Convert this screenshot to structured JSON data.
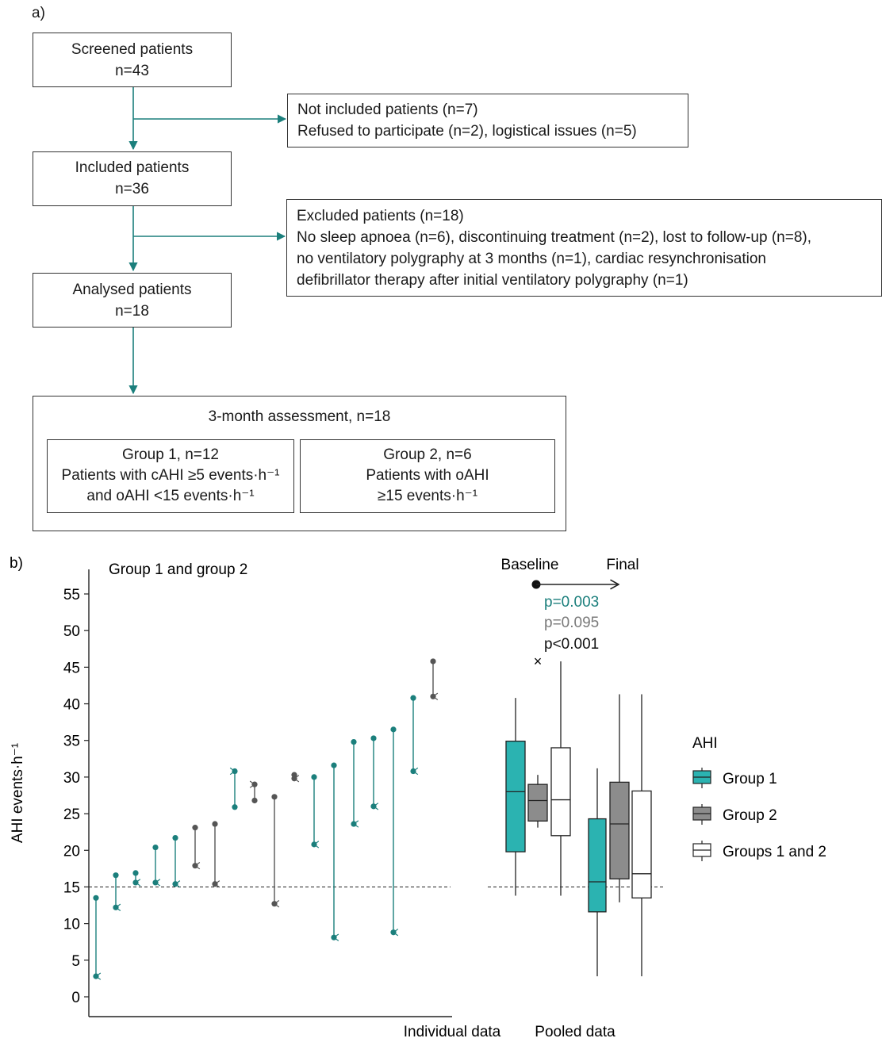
{
  "panel_a": {
    "label": "a)",
    "screened": {
      "title": "Screened patients",
      "n": "n=43"
    },
    "not_included": {
      "line1": "Not included patients (n=7)",
      "line2": "Refused to participate (n=2), logistical issues (n=5)"
    },
    "included": {
      "title": "Included patients",
      "n": "n=36"
    },
    "excluded": {
      "line1": "Excluded patients (n=18)",
      "line2": "No sleep apnoea (n=6), discontinuing treatment (n=2), lost to follow-up (n=8),",
      "line3": "no ventilatory polygraphy at 3 months (n=1), cardiac resynchronisation",
      "line4": "defibrillator therapy after initial ventilatory polygraphy (n=1)"
    },
    "analysed": {
      "title": "Analysed patients",
      "n": "n=18"
    },
    "assessment": {
      "title": "3-month assessment, n=18",
      "group1": {
        "line1": "Group 1, n=12",
        "line2": "Patients with cAHI ≥5 events·h⁻¹",
        "line3": "and oAHI <15 events·h⁻¹"
      },
      "group2": {
        "line1": "Group 2, n=6",
        "line2": "Patients with oAHI",
        "line3": "≥15 events·h⁻¹"
      }
    }
  },
  "panel_b": {
    "label": "b)",
    "individual_subtitle": "Group 1 and group 2",
    "baseline_label": "Baseline",
    "final_label": "Final",
    "p_values": [
      "p=0.003",
      "p=0.095",
      "p<0.001"
    ],
    "outlier_marker": "×",
    "xlabel_individual": "Individual data",
    "xlabel_pooled": "Pooled data",
    "legend_title": "AHI",
    "legend": [
      "Group 1",
      "Group 2",
      "Groups 1 and 2"
    ]
  },
  "colors": {
    "group1": "#2bb3b1",
    "group1_dark": "#1b7f7c",
    "group2": "#8c8c8c",
    "group2_dark": "#555555",
    "all": "#ffffff"
  },
  "chart_data": {
    "type": "scatter",
    "ylabel": "AHI events·h⁻¹",
    "ylim": [
      0,
      55
    ],
    "yticks": [
      0,
      5,
      10,
      15,
      20,
      25,
      30,
      35,
      40,
      45,
      50,
      55
    ],
    "reference_line": 15,
    "individual": [
      {
        "group": 1,
        "baseline": 13.5,
        "final": 2.8
      },
      {
        "group": 1,
        "baseline": 16.6,
        "final": 12.2
      },
      {
        "group": 1,
        "baseline": 16.9,
        "final": 15.6
      },
      {
        "group": 1,
        "baseline": 20.4,
        "final": 15.6
      },
      {
        "group": 1,
        "baseline": 21.7,
        "final": 15.4
      },
      {
        "group": 2,
        "baseline": 23.1,
        "final": 17.9
      },
      {
        "group": 2,
        "baseline": 23.6,
        "final": 15.4
      },
      {
        "group": 1,
        "baseline": 25.9,
        "final": 30.8
      },
      {
        "group": 2,
        "baseline": 26.8,
        "final": 29.0
      },
      {
        "group": 2,
        "baseline": 27.3,
        "final": 12.7
      },
      {
        "group": 2,
        "baseline": 30.3,
        "final": 29.8
      },
      {
        "group": 1,
        "baseline": 30.0,
        "final": 20.8
      },
      {
        "group": 1,
        "baseline": 31.6,
        "final": 8.1
      },
      {
        "group": 1,
        "baseline": 34.8,
        "final": 23.6
      },
      {
        "group": 1,
        "baseline": 35.3,
        "final": 26.0
      },
      {
        "group": 1,
        "baseline": 36.5,
        "final": 8.8
      },
      {
        "group": 1,
        "baseline": 40.8,
        "final": 30.8
      },
      {
        "group": 2,
        "baseline": 45.8,
        "final": 41.0
      }
    ],
    "pooled": [
      {
        "name": "Group 1",
        "time": "Baseline",
        "whisker_low": 13.8,
        "q1": 19.8,
        "median": 28.0,
        "q3": 34.9,
        "whisker_high": 40.8
      },
      {
        "name": "Group 2",
        "time": "Baseline",
        "whisker_low": 23.1,
        "q1": 24.0,
        "median": 26.8,
        "q3": 29.0,
        "whisker_high": 30.3,
        "outlier": 45.8
      },
      {
        "name": "Groups 1 and 2",
        "time": "Baseline",
        "whisker_low": 13.8,
        "q1": 22.0,
        "median": 26.9,
        "q3": 34.0,
        "whisker_high": 45.8
      },
      {
        "name": "Group 1",
        "time": "Final",
        "whisker_low": 2.8,
        "q1": 11.6,
        "median": 15.7,
        "q3": 24.3,
        "whisker_high": 31.2
      },
      {
        "name": "Group 2",
        "time": "Final",
        "whisker_low": 12.9,
        "q1": 16.1,
        "median": 23.6,
        "q3": 29.3,
        "whisker_high": 41.3
      },
      {
        "name": "Groups 1 and 2",
        "time": "Final",
        "whisker_low": 2.8,
        "q1": 13.5,
        "median": 16.8,
        "q3": 28.1,
        "whisker_high": 41.3
      }
    ]
  }
}
